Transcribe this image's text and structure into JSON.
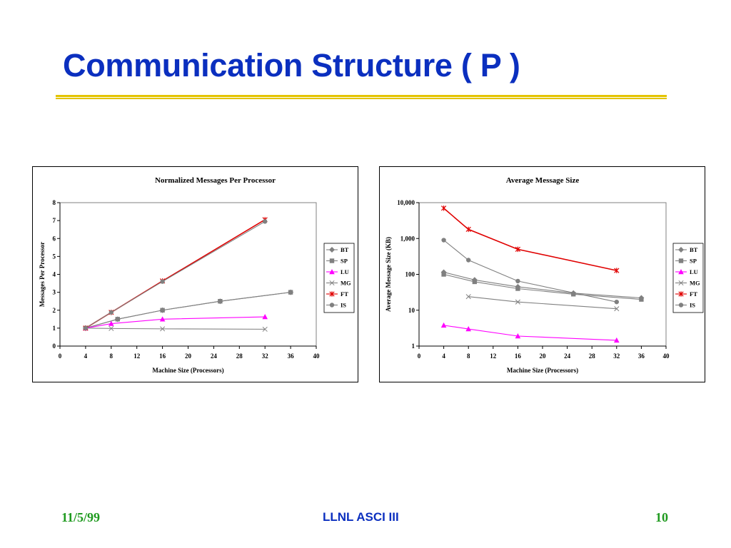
{
  "slide": {
    "title": "Communication Structure ( P )",
    "footer_left": "11/5/99",
    "footer_center": "LLNL ASCI III",
    "footer_right": "10"
  },
  "chart_data": [
    {
      "type": "line",
      "title": "Normalized Messages Per Processor",
      "xlabel": "Machine Size (Processors)",
      "ylabel": "Messages Per Processor",
      "xlim": [
        0,
        40
      ],
      "ylim": [
        0,
        8
      ],
      "xticks": [
        "0",
        "4",
        "8",
        "12",
        "16",
        "20",
        "24",
        "28",
        "32",
        "36",
        "40"
      ],
      "yticks": [
        "0",
        "1",
        "2",
        "3",
        "4",
        "5",
        "6",
        "7",
        "8"
      ],
      "grid": false,
      "legend_position": "right",
      "series": [
        {
          "name": "BT",
          "color": "#808080",
          "marker": "diamond",
          "x": [
            4,
            9,
            16,
            25,
            36
          ],
          "y": [
            1,
            1.5,
            2,
            2.5,
            3
          ]
        },
        {
          "name": "SP",
          "color": "#808080",
          "marker": "square",
          "x": [
            4,
            9,
            16,
            25,
            36
          ],
          "y": [
            1,
            1.5,
            2,
            2.5,
            3
          ]
        },
        {
          "name": "LU",
          "color": "#ff00ff",
          "marker": "triangle",
          "x": [
            4,
            8,
            16,
            32
          ],
          "y": [
            1,
            1.25,
            1.5,
            1.63
          ]
        },
        {
          "name": "MG",
          "color": "#808080",
          "marker": "x",
          "x": [
            4,
            8,
            16,
            32
          ],
          "y": [
            1,
            0.98,
            0.96,
            0.94
          ]
        },
        {
          "name": "FT",
          "color": "#e00000",
          "marker": "star",
          "x": [
            4,
            8,
            16,
            32
          ],
          "y": [
            1,
            1.88,
            3.63,
            7.05
          ]
        },
        {
          "name": "IS",
          "color": "#808080",
          "marker": "circle",
          "x": [
            4,
            8,
            16,
            32
          ],
          "y": [
            1,
            1.88,
            3.6,
            6.95
          ]
        }
      ]
    },
    {
      "type": "line",
      "title": "Average Message Size",
      "xlabel": "Machine Size (Processors)",
      "ylabel": "Average Message Size (KB)",
      "yscale": "log",
      "xlim": [
        0,
        40
      ],
      "ylim": [
        1,
        10000
      ],
      "xticks": [
        "0",
        "4",
        "8",
        "12",
        "16",
        "20",
        "24",
        "28",
        "32",
        "36",
        "40"
      ],
      "yticks": [
        "1",
        "10",
        "100",
        "1,000",
        "10,000"
      ],
      "grid": false,
      "legend_position": "right",
      "series": [
        {
          "name": "BT",
          "color": "#808080",
          "marker": "diamond",
          "x": [
            4,
            9,
            16,
            25,
            36
          ],
          "y": [
            115,
            70,
            45,
            30,
            22
          ]
        },
        {
          "name": "SP",
          "color": "#808080",
          "marker": "square",
          "x": [
            4,
            9,
            16,
            25,
            36
          ],
          "y": [
            100,
            62,
            40,
            28,
            20
          ]
        },
        {
          "name": "LU",
          "color": "#ff00ff",
          "marker": "triangle",
          "x": [
            4,
            8,
            16,
            32
          ],
          "y": [
            3.8,
            3,
            1.9,
            1.45
          ]
        },
        {
          "name": "MG",
          "color": "#808080",
          "marker": "x",
          "x": [
            8,
            16,
            32
          ],
          "y": [
            24,
            17,
            11
          ]
        },
        {
          "name": "FT",
          "color": "#e00000",
          "marker": "star",
          "x": [
            4,
            8,
            16,
            32
          ],
          "y": [
            7000,
            1800,
            500,
            128
          ]
        },
        {
          "name": "IS",
          "color": "#808080",
          "marker": "circle",
          "x": [
            4,
            8,
            16,
            32
          ],
          "y": [
            900,
            250,
            65,
            17
          ]
        }
      ]
    }
  ]
}
